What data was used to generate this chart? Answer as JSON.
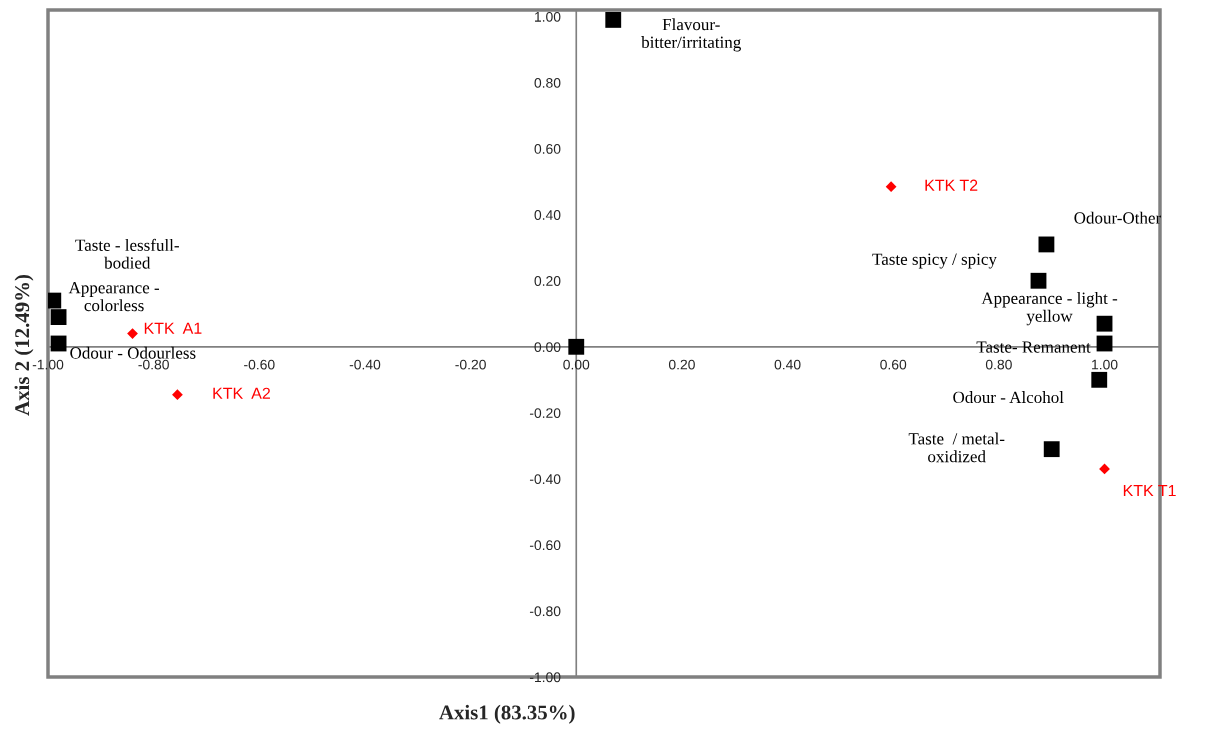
{
  "chart_data": {
    "type": "scatter",
    "xlabel": "Axis1 (83.35%)",
    "ylabel": "Axis 2 (12.49%)",
    "xlim": [
      -1.0,
      1.105
    ],
    "ylim": [
      -1.0,
      1.02
    ],
    "xticks": [
      {
        "value": -1.0,
        "label": "-1.00"
      },
      {
        "value": -0.8,
        "label": "-0.80"
      },
      {
        "value": -0.6,
        "label": "-0.60"
      },
      {
        "value": -0.4,
        "label": "-0.40"
      },
      {
        "value": -0.2,
        "label": "-0.20"
      },
      {
        "value": 0.0,
        "label": "0.00"
      },
      {
        "value": 0.2,
        "label": "0.20"
      },
      {
        "value": 0.4,
        "label": "0.40"
      },
      {
        "value": 0.6,
        "label": "0.60"
      },
      {
        "value": 0.8,
        "label": "0.80"
      },
      {
        "value": 1.0,
        "label": "1.00"
      }
    ],
    "yticks": [
      {
        "value": -1.0,
        "label": "-1.00"
      },
      {
        "value": -0.8,
        "label": "-0.80"
      },
      {
        "value": -0.6,
        "label": "-0.60"
      },
      {
        "value": -0.4,
        "label": "-0.40"
      },
      {
        "value": -0.2,
        "label": "-0.20"
      },
      {
        "value": 0.0,
        "label": "0.00"
      },
      {
        "value": 0.2,
        "label": "0.20"
      },
      {
        "value": 0.4,
        "label": "0.40"
      },
      {
        "value": 0.6,
        "label": "0.60"
      },
      {
        "value": 0.8,
        "label": "0.80"
      },
      {
        "value": 1.0,
        "label": "1.00"
      }
    ],
    "grid": false,
    "legend": false,
    "series": [
      {
        "name": "Flavour-\nbitter/irritating",
        "color": "#000000",
        "marker": "square",
        "x": [
          0.07
        ],
        "values": [
          0.99
        ]
      },
      {
        "name": "Taste - lessfull-\nbodied",
        "color": "#000000",
        "marker": "square",
        "x": [
          -0.99
        ],
        "values": [
          0.14
        ]
      },
      {
        "name": "Appearance -\ncolorless",
        "color": "#000000",
        "marker": "square",
        "x": [
          -0.98
        ],
        "values": [
          0.09
        ]
      },
      {
        "name": "Odour - Odourless",
        "color": "#000000",
        "marker": "square",
        "x": [
          -0.98
        ],
        "values": [
          0.01
        ]
      },
      {
        "color": "#000000",
        "marker": "square",
        "x": [
          0.0
        ],
        "values": [
          0.0
        ]
      },
      {
        "name": "Odour-Other",
        "color": "#000000",
        "marker": "square",
        "x": [
          0.89
        ],
        "values": [
          0.31
        ]
      },
      {
        "name": "Taste spicy / spicy",
        "color": "#000000",
        "marker": "square",
        "x": [
          0.875
        ],
        "values": [
          0.2
        ]
      },
      {
        "name": "Appearance - light -\nyellow",
        "color": "#000000",
        "marker": "square",
        "x": [
          1.0
        ],
        "values": [
          0.07
        ]
      },
      {
        "name": "Taste- Remanent",
        "color": "#000000",
        "marker": "square",
        "x": [
          1.0
        ],
        "values": [
          0.01
        ]
      },
      {
        "name": "Odour - Alcohol",
        "color": "#000000",
        "marker": "square",
        "x": [
          0.99
        ],
        "values": [
          -0.1
        ]
      },
      {
        "name": "Taste  / metal-\noxidized",
        "color": "#000000",
        "marker": "square",
        "x": [
          0.9
        ],
        "values": [
          -0.31
        ]
      },
      {
        "name": "KTK  A1",
        "color": "#ff0000",
        "marker": "diamond",
        "x": [
          -0.84
        ],
        "values": [
          0.04
        ]
      },
      {
        "name": "KTK  A2",
        "color": "#ff0000",
        "marker": "diamond",
        "x": [
          -0.755
        ],
        "values": [
          -0.145
        ]
      },
      {
        "name": "KTK T2",
        "color": "#ff0000",
        "marker": "diamond",
        "x": [
          0.596
        ],
        "values": [
          0.485
        ]
      },
      {
        "name": "KTK T1",
        "color": "#ff0000",
        "marker": "diamond",
        "x": [
          1.0
        ],
        "values": [
          -0.37
        ]
      }
    ]
  }
}
